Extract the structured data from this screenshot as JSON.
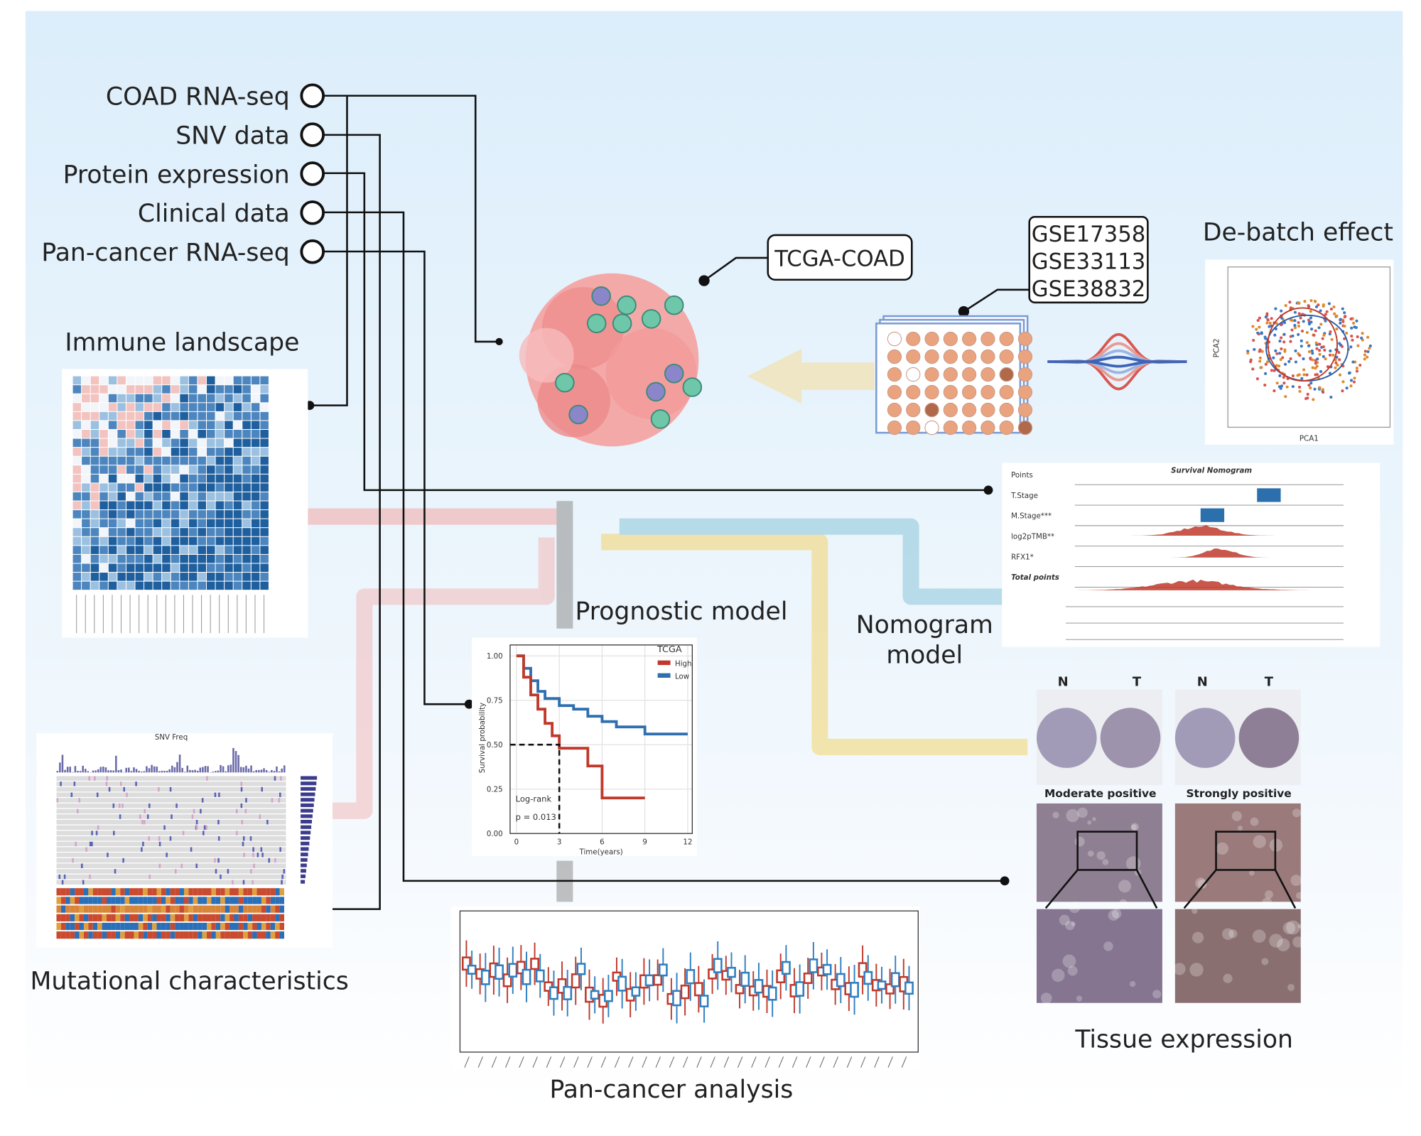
{
  "inputs": [
    "COAD RNA-seq",
    "SNV data",
    "Protein expression",
    "Clinical data",
    "Pan-cancer RNA-seq"
  ],
  "tcga_label": "TCGA-COAD",
  "geo_datasets": [
    "GSE17358",
    "GSE33113",
    "GSE38832"
  ],
  "sections": {
    "immune": "Immune landscape",
    "debatch": "De-batch effect",
    "prognostic": "Prognostic model",
    "nomogram": [
      "Nomogram",
      "model"
    ],
    "mutational": "Mutational characteristics",
    "pancancer": "Pan-cancer analysis",
    "tissue": "Tissue expression"
  },
  "pca": {
    "x_label": "PCA1",
    "y_label": "PCA2"
  },
  "nomogram_plot": {
    "title": "Survival Nomogram",
    "rows": [
      "Points",
      "T.Stage",
      "M.Stage***",
      "log2pTMB**",
      "RFX1*",
      "Total points"
    ]
  },
  "km_plot": {
    "legend_title": "TCGA",
    "groups": [
      "High",
      "Low"
    ],
    "y_label": "Survival probability",
    "x_label": "Time(years)",
    "yticks": [
      "0.00",
      "0.25",
      "0.50",
      "0.75",
      "1.00"
    ],
    "xticks": [
      "0",
      "3",
      "6",
      "9",
      "12"
    ],
    "test": "Log-rank",
    "p_value": "p = 0.013"
  },
  "snv_plot": {
    "title": "SNV Freq"
  },
  "tissue": {
    "columns": [
      "N",
      "T",
      "N",
      "T"
    ],
    "captions": [
      "Moderate positive",
      "Strongly positive"
    ]
  }
}
